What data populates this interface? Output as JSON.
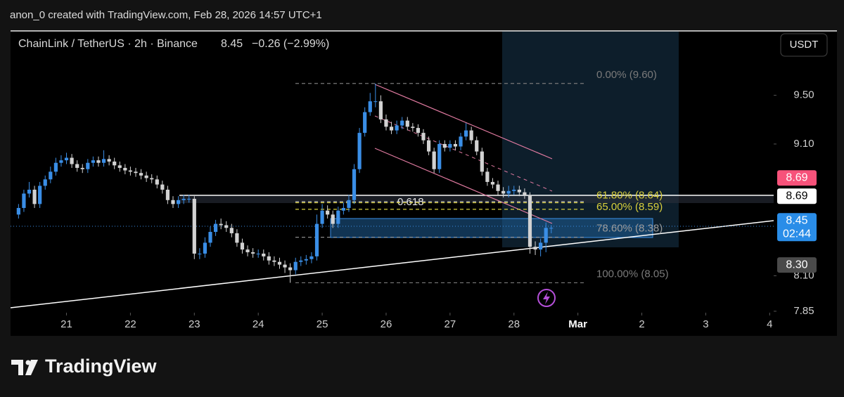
{
  "header": "anon_0 created with TradingView.com, Feb 28, 2026 14:57 UTC+1",
  "brand": "TradingView",
  "chart_data": {
    "type": "candlestick",
    "title": "ChainLink / TetherUS · 2h · Binance",
    "last": "8.45",
    "change": "−0.26 (−2.99%)",
    "currency": "USDT",
    "log_scale": true,
    "up_color": "#3a8ee6",
    "down_color": "#d2d2d2",
    "x": [
      "2026-02-20T06:00",
      "2026-02-20T08:00",
      "2026-02-20T10:00",
      "2026-02-20T12:00",
      "2026-02-20T14:00",
      "2026-02-20T16:00",
      "2026-02-20T18:00",
      "2026-02-20T20:00",
      "2026-02-20T22:00",
      "2026-02-21T00:00",
      "2026-02-21T02:00",
      "2026-02-21T04:00",
      "2026-02-21T06:00",
      "2026-02-21T08:00",
      "2026-02-21T10:00",
      "2026-02-21T12:00",
      "2026-02-21T14:00",
      "2026-02-21T16:00",
      "2026-02-21T18:00",
      "2026-02-21T20:00",
      "2026-02-21T22:00",
      "2026-02-22T00:00",
      "2026-02-22T02:00",
      "2026-02-22T04:00",
      "2026-02-22T06:00",
      "2026-02-22T08:00",
      "2026-02-22T10:00",
      "2026-02-22T12:00",
      "2026-02-22T14:00",
      "2026-02-22T16:00",
      "2026-02-22T18:00",
      "2026-02-22T20:00",
      "2026-02-22T22:00",
      "2026-02-23T00:00",
      "2026-02-23T02:00",
      "2026-02-23T04:00",
      "2026-02-23T06:00",
      "2026-02-23T08:00",
      "2026-02-23T10:00",
      "2026-02-23T12:00",
      "2026-02-23T14:00",
      "2026-02-23T16:00",
      "2026-02-23T18:00",
      "2026-02-23T20:00",
      "2026-02-23T22:00",
      "2026-02-24T00:00",
      "2026-02-24T02:00",
      "2026-02-24T04:00",
      "2026-02-24T06:00",
      "2026-02-24T08:00",
      "2026-02-24T10:00",
      "2026-02-24T12:00",
      "2026-02-24T14:00",
      "2026-02-24T16:00",
      "2026-02-24T18:00",
      "2026-02-24T20:00",
      "2026-02-24T22:00",
      "2026-02-25T00:00",
      "2026-02-25T02:00",
      "2026-02-25T04:00",
      "2026-02-25T06:00",
      "2026-02-25T08:00",
      "2026-02-25T10:00",
      "2026-02-25T12:00",
      "2026-02-25T14:00",
      "2026-02-25T16:00",
      "2026-02-25T18:00",
      "2026-02-25T20:00",
      "2026-02-25T22:00",
      "2026-02-26T00:00",
      "2026-02-26T02:00",
      "2026-02-26T04:00",
      "2026-02-26T06:00",
      "2026-02-26T08:00",
      "2026-02-26T10:00",
      "2026-02-26T12:00",
      "2026-02-26T14:00",
      "2026-02-26T16:00",
      "2026-02-26T18:00",
      "2026-02-26T20:00",
      "2026-02-26T22:00",
      "2026-02-27T00:00",
      "2026-02-27T02:00",
      "2026-02-27T04:00",
      "2026-02-27T06:00",
      "2026-02-27T08:00",
      "2026-02-27T10:00",
      "2026-02-27T12:00",
      "2026-02-27T14:00",
      "2026-02-27T16:00",
      "2026-02-27T18:00",
      "2026-02-27T20:00",
      "2026-02-27T22:00",
      "2026-02-28T00:00",
      "2026-02-28T02:00",
      "2026-02-28T04:00",
      "2026-02-28T06:00",
      "2026-02-28T08:00",
      "2026-02-28T10:00",
      "2026-02-28T12:00",
      "2026-02-28T14:00"
    ],
    "open": [
      8.55,
      8.6,
      8.71,
      8.74,
      8.63,
      8.77,
      8.82,
      8.88,
      8.95,
      8.97,
      8.99,
      8.94,
      8.91,
      8.9,
      8.95,
      8.97,
      8.95,
      8.98,
      8.96,
      8.93,
      8.91,
      8.89,
      8.88,
      8.87,
      8.85,
      8.83,
      8.82,
      8.78,
      8.74,
      8.66,
      8.63,
      8.66,
      8.67,
      8.67,
      8.26,
      8.26,
      8.34,
      8.42,
      8.48,
      8.47,
      8.45,
      8.41,
      8.34,
      8.29,
      8.27,
      8.26,
      8.26,
      8.24,
      8.21,
      8.2,
      8.18,
      8.16,
      8.14,
      8.2,
      8.21,
      8.22,
      8.24,
      8.48,
      8.58,
      8.55,
      8.48,
      8.58,
      8.6,
      8.66,
      8.9,
      9.19,
      9.36,
      9.45,
      9.45,
      9.3,
      9.24,
      9.21,
      9.25,
      9.29,
      9.24,
      9.23,
      9.19,
      9.13,
      9.04,
      8.9,
      9.1,
      9.07,
      9.1,
      9.08,
      9.16,
      9.21,
      9.13,
      9.04,
      8.88,
      8.8,
      8.78,
      8.73,
      8.71,
      8.73,
      8.74,
      8.72,
      8.7,
      8.31,
      8.29,
      8.34,
      8.45
    ],
    "high": [
      8.63,
      8.74,
      8.8,
      8.77,
      8.8,
      8.85,
      8.92,
      8.99,
      9.01,
      9.03,
      9.02,
      8.97,
      8.94,
      8.98,
      9.0,
      9.0,
      9.05,
      9.01,
      8.99,
      8.96,
      8.94,
      8.92,
      8.91,
      8.9,
      8.88,
      8.86,
      8.85,
      8.81,
      8.77,
      8.69,
      8.69,
      8.7,
      8.7,
      8.69,
      8.3,
      8.38,
      8.46,
      8.51,
      8.52,
      8.5,
      8.48,
      8.44,
      8.37,
      8.32,
      8.3,
      8.29,
      8.29,
      8.27,
      8.24,
      8.23,
      8.21,
      8.19,
      8.23,
      8.24,
      8.25,
      8.27,
      8.55,
      8.63,
      8.62,
      8.58,
      8.61,
      8.64,
      8.7,
      8.94,
      9.23,
      9.4,
      9.52,
      9.6,
      9.5,
      9.34,
      9.28,
      9.29,
      9.32,
      9.32,
      9.27,
      9.26,
      9.22,
      9.16,
      9.07,
      9.13,
      9.13,
      9.13,
      9.13,
      9.19,
      9.27,
      9.24,
      9.16,
      9.07,
      8.91,
      8.83,
      8.81,
      8.76,
      8.77,
      8.77,
      8.77,
      8.75,
      8.72,
      8.35,
      8.37,
      8.49,
      8.47
    ],
    "low": [
      8.52,
      8.57,
      8.68,
      8.6,
      8.6,
      8.74,
      8.79,
      8.85,
      8.92,
      8.94,
      8.91,
      8.88,
      8.87,
      8.87,
      8.92,
      8.92,
      8.92,
      8.93,
      8.9,
      8.88,
      8.86,
      8.85,
      8.84,
      8.82,
      8.8,
      8.79,
      8.75,
      8.71,
      8.63,
      8.6,
      8.6,
      8.63,
      8.64,
      8.22,
      8.22,
      8.23,
      8.31,
      8.39,
      8.44,
      8.42,
      8.38,
      8.31,
      8.26,
      8.24,
      8.23,
      8.23,
      8.21,
      8.18,
      8.17,
      8.15,
      8.12,
      8.05,
      8.11,
      8.17,
      8.18,
      8.19,
      8.21,
      8.45,
      8.52,
      8.45,
      8.45,
      8.55,
      8.57,
      8.63,
      8.87,
      9.16,
      9.33,
      9.4,
      9.27,
      9.21,
      9.18,
      9.18,
      9.22,
      9.21,
      9.2,
      9.16,
      9.1,
      9.01,
      8.87,
      8.87,
      9.04,
      9.04,
      9.05,
      9.05,
      9.13,
      9.1,
      9.01,
      8.85,
      8.77,
      8.75,
      8.7,
      8.68,
      8.68,
      8.7,
      8.69,
      8.67,
      8.26,
      8.25,
      8.24,
      8.27,
      8.41
    ],
    "close": [
      8.6,
      8.71,
      8.74,
      8.63,
      8.77,
      8.82,
      8.88,
      8.95,
      8.97,
      8.99,
      8.94,
      8.91,
      8.9,
      8.95,
      8.97,
      8.95,
      8.98,
      8.96,
      8.93,
      8.91,
      8.89,
      8.88,
      8.87,
      8.85,
      8.83,
      8.82,
      8.78,
      8.74,
      8.66,
      8.63,
      8.66,
      8.67,
      8.67,
      8.26,
      8.26,
      8.34,
      8.42,
      8.48,
      8.47,
      8.45,
      8.41,
      8.34,
      8.29,
      8.27,
      8.26,
      8.26,
      8.24,
      8.21,
      8.2,
      8.18,
      8.16,
      8.14,
      8.2,
      8.21,
      8.22,
      8.24,
      8.48,
      8.58,
      8.55,
      8.48,
      8.58,
      8.6,
      8.66,
      8.9,
      9.19,
      9.36,
      9.45,
      9.45,
      9.3,
      9.24,
      9.21,
      9.25,
      9.29,
      9.24,
      9.23,
      9.19,
      9.13,
      9.04,
      8.9,
      9.1,
      9.07,
      9.1,
      9.08,
      9.16,
      9.21,
      9.13,
      9.04,
      8.88,
      8.8,
      8.78,
      8.73,
      8.71,
      8.73,
      8.74,
      8.72,
      8.7,
      8.31,
      8.29,
      8.34,
      8.45,
      8.45
    ],
    "xlim": [
      "2026-02-20T03:00",
      "2026-03-04T01:30"
    ],
    "xticks": [
      {
        "value": "2026-02-21T00:00",
        "label": "21"
      },
      {
        "value": "2026-02-22T00:00",
        "label": "22"
      },
      {
        "value": "2026-02-23T00:00",
        "label": "23"
      },
      {
        "value": "2026-02-24T00:00",
        "label": "24"
      },
      {
        "value": "2026-02-25T00:00",
        "label": "25"
      },
      {
        "value": "2026-02-26T00:00",
        "label": "26"
      },
      {
        "value": "2026-02-27T00:00",
        "label": "27"
      },
      {
        "value": "2026-02-28T00:00",
        "label": "28"
      },
      {
        "value": "2026-03-01T00:00",
        "label": "Mar"
      },
      {
        "value": "2026-03-02T00:00",
        "label": "2"
      },
      {
        "value": "2026-03-03T00:00",
        "label": "3"
      },
      {
        "value": "2026-03-04T00:00",
        "label": "4"
      }
    ],
    "ylim": [
      7.84,
      10.05
    ],
    "yticks": [
      {
        "value": 9.5,
        "label": "9.50"
      },
      {
        "value": 9.1,
        "label": "9.10"
      },
      {
        "value": 8.1,
        "label": "8.10"
      },
      {
        "value": 7.85,
        "label": "7.85"
      }
    ],
    "fib_levels": [
      {
        "value": 9.6,
        "label": "0.00% (9.60)",
        "color": "#7a7a7a"
      },
      {
        "value": 8.64,
        "label": "61.80% (8.64)",
        "color": "#d9cf3c"
      },
      {
        "value": 8.59,
        "label": "65.00% (8.59)",
        "color": "#d9cf3c"
      },
      {
        "value": 8.38,
        "label": "78.60% (8.38)",
        "color": "#9a9a9a"
      },
      {
        "value": 8.05,
        "label": "100.00% (8.05)",
        "color": "#7a7a7a"
      }
    ],
    "annotation": "0.618",
    "price_labels": [
      {
        "value": 8.69,
        "color": "#f7527a"
      },
      {
        "value": 8.69,
        "color": "#ffffff"
      },
      {
        "value": 8.45,
        "color": "#2a8de8",
        "countdown": "02:44"
      },
      {
        "value": 8.3,
        "label": "8.30",
        "color": "#4a4a4a"
      }
    ]
  }
}
